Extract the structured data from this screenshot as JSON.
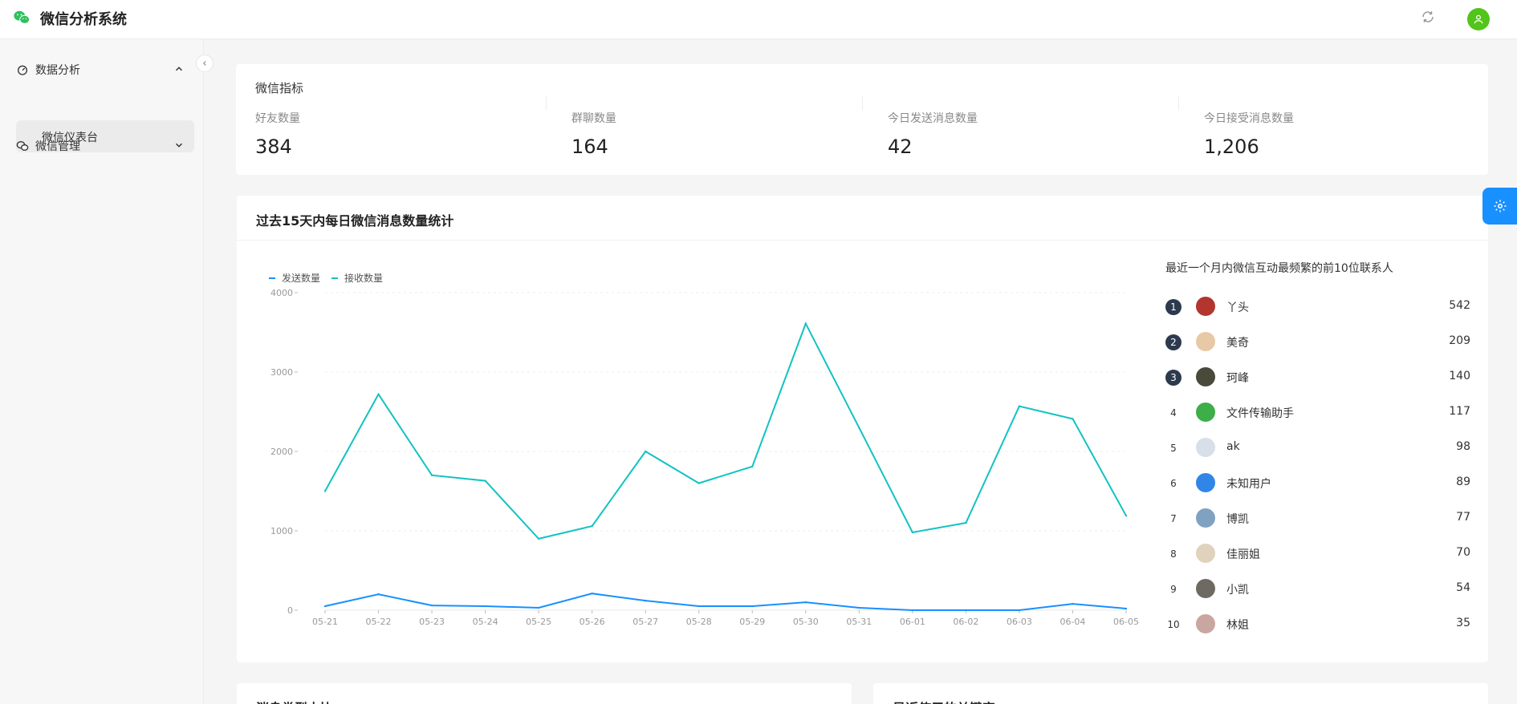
{
  "app": {
    "title": "微信分析系统"
  },
  "header": {
    "refresh_icon": "refresh-icon",
    "avatar_icon": "user-icon"
  },
  "sidebar": {
    "groups": [
      {
        "label": "数据分析",
        "icon": "dashboard-icon",
        "expanded": true,
        "items": [
          {
            "label": "微信仪表台",
            "active": true
          }
        ]
      },
      {
        "label": "微信管理",
        "icon": "wechat-icon",
        "expanded": false,
        "items": []
      }
    ]
  },
  "stats": {
    "title": "微信指标",
    "items": [
      {
        "label": "好友数量",
        "value": "384"
      },
      {
        "label": "群聊数量",
        "value": "164"
      },
      {
        "label": "今日发送消息数量",
        "value": "42"
      },
      {
        "label": "今日接受消息数量",
        "value": "1,206"
      }
    ]
  },
  "chart_section": {
    "title": "过去15天内每日微信消息数量统计"
  },
  "chart_data": {
    "type": "line",
    "categories": [
      "05-21",
      "05-22",
      "05-23",
      "05-24",
      "05-25",
      "05-26",
      "05-27",
      "05-28",
      "05-29",
      "05-30",
      "05-31",
      "06-01",
      "06-02",
      "06-03",
      "06-04",
      "06-05"
    ],
    "series": [
      {
        "name": "发送数量",
        "color": "#1890ff",
        "values": [
          50,
          200,
          60,
          50,
          30,
          210,
          120,
          50,
          50,
          100,
          30,
          0,
          0,
          0,
          80,
          20
        ]
      },
      {
        "name": "接收数量",
        "color": "#13c2c2",
        "values": [
          1500,
          2720,
          1700,
          1630,
          900,
          1060,
          2000,
          1600,
          1810,
          3610,
          2300,
          980,
          1100,
          2570,
          2410,
          1190
        ]
      }
    ],
    "ylim": [
      0,
      4000
    ],
    "yticks": [
      "0",
      "1000",
      "2000",
      "3000",
      "4000"
    ],
    "grid": true,
    "legend": "top-left"
  },
  "top_contacts": {
    "title": "最近一个月内微信互动最频繁的前10位联系人",
    "items": [
      {
        "rank": "1",
        "name": "丫头",
        "count": "542",
        "avatar_color": "#b2362e"
      },
      {
        "rank": "2",
        "name": "美奇",
        "count": "209",
        "avatar_color": "#e8c9a5"
      },
      {
        "rank": "3",
        "name": "珂峰",
        "count": "140",
        "avatar_color": "#4a4a3a"
      },
      {
        "rank": "4",
        "name": "文件传输助手",
        "count": "117",
        "avatar_color": "#3dae48"
      },
      {
        "rank": "5",
        "name": "ak",
        "count": "98",
        "avatar_color": "#d7dfe8"
      },
      {
        "rank": "6",
        "name": "未知用户",
        "count": "89",
        "avatar_color": "#2f86e8"
      },
      {
        "rank": "7",
        "name": "博凯",
        "count": "77",
        "avatar_color": "#7fa2c0"
      },
      {
        "rank": "8",
        "name": "佳丽姐",
        "count": "70",
        "avatar_color": "#e0d2bd"
      },
      {
        "rank": "9",
        "name": "小凯",
        "count": "54",
        "avatar_color": "#6e6a62"
      },
      {
        "rank": "10",
        "name": "林姐",
        "count": "35",
        "avatar_color": "#c9a7a0"
      }
    ]
  },
  "bottom": {
    "left_title": "消息类型占比",
    "right_title": "最近使用的关键字"
  },
  "colors": {
    "accent": "#1890ff",
    "teal": "#13c2c2",
    "wechat_green": "#2bc15b"
  }
}
